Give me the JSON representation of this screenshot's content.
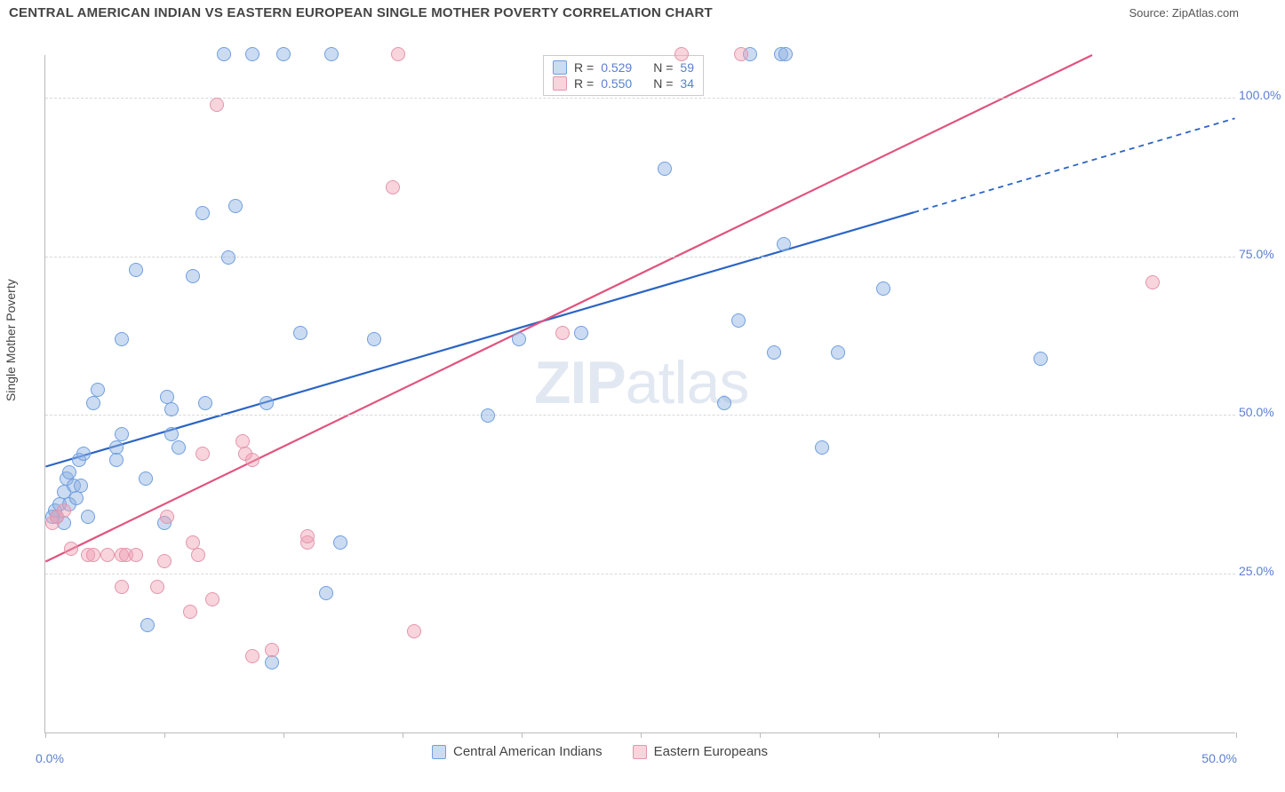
{
  "title": "CENTRAL AMERICAN INDIAN VS EASTERN EUROPEAN SINGLE MOTHER POVERTY CORRELATION CHART",
  "source": "Source: ZipAtlas.com",
  "y_axis_title": "Single Mother Poverty",
  "watermark": {
    "bold": "ZIP",
    "thin": "atlas"
  },
  "chart": {
    "type": "scatter",
    "xlim": [
      0,
      50
    ],
    "ylim": [
      0,
      107
    ],
    "x_ticks": [
      0,
      5,
      10,
      15,
      20,
      25,
      30,
      35,
      40,
      45,
      50
    ],
    "x_labels": {
      "0": "0.0%",
      "50": "50.0%"
    },
    "y_gridlines": [
      25,
      50,
      75,
      100
    ],
    "y_labels": [
      "25.0%",
      "50.0%",
      "75.0%",
      "100.0%"
    ],
    "background_color": "#ffffff",
    "grid_color": "#d8d8d8",
    "axis_color": "#bbbbbb",
    "label_color": "#5b7fd0",
    "marker_radius": 8,
    "series": [
      {
        "name": "Central American Indians",
        "fill": "rgba(140,175,225,0.45)",
        "stroke": "#6f9fe0",
        "trend_color": "#2b64c4",
        "trend": {
          "x1": 0,
          "y1": 42,
          "x2": 50,
          "y2": 97,
          "solid_until_x": 36.5
        },
        "R": "0.529",
        "N": "59",
        "points": [
          [
            0.3,
            34
          ],
          [
            0.4,
            35
          ],
          [
            0.6,
            36
          ],
          [
            0.8,
            33
          ],
          [
            0.8,
            38
          ],
          [
            0.9,
            40
          ],
          [
            1.0,
            36
          ],
          [
            1.0,
            41
          ],
          [
            1.2,
            39
          ],
          [
            1.3,
            37
          ],
          [
            1.5,
            39
          ],
          [
            2.0,
            52
          ],
          [
            1.4,
            43
          ],
          [
            1.6,
            44
          ],
          [
            0.5,
            34
          ],
          [
            2.2,
            54
          ],
          [
            3.0,
            45
          ],
          [
            3.0,
            43
          ],
          [
            3.2,
            47
          ],
          [
            4.2,
            40
          ],
          [
            5.3,
            51
          ],
          [
            5.3,
            47
          ],
          [
            5.6,
            45
          ],
          [
            3.2,
            62
          ],
          [
            6.7,
            52
          ],
          [
            5.1,
            53
          ],
          [
            9.3,
            52
          ],
          [
            6.2,
            72
          ],
          [
            7.7,
            75
          ],
          [
            6.6,
            82
          ],
          [
            8.0,
            83
          ],
          [
            10.7,
            63
          ],
          [
            3.8,
            73
          ],
          [
            12.0,
            107
          ],
          [
            10.0,
            107
          ],
          [
            8.7,
            107
          ],
          [
            7.5,
            107
          ],
          [
            13.8,
            62
          ],
          [
            18.6,
            50
          ],
          [
            19.9,
            62
          ],
          [
            22.5,
            63
          ],
          [
            29.6,
            107
          ],
          [
            30.9,
            107
          ],
          [
            31.1,
            107
          ],
          [
            26.0,
            89
          ],
          [
            31.0,
            77
          ],
          [
            29.1,
            65
          ],
          [
            28.5,
            52
          ],
          [
            30.6,
            60
          ],
          [
            33.3,
            60
          ],
          [
            32.6,
            45
          ],
          [
            35.2,
            70
          ],
          [
            41.8,
            59
          ],
          [
            12.4,
            30
          ],
          [
            11.8,
            22
          ],
          [
            4.3,
            17
          ],
          [
            9.5,
            11
          ],
          [
            5.0,
            33
          ],
          [
            1.8,
            34
          ]
        ]
      },
      {
        "name": "Eastern Europeans",
        "fill": "rgba(240,160,180,0.45)",
        "stroke": "#e495ab",
        "trend_color": "#e0537d",
        "trend": {
          "x1": 0,
          "y1": 27,
          "x2": 44,
          "y2": 107,
          "solid_until_x": 44
        },
        "R": "0.550",
        "N": "34",
        "points": [
          [
            0.3,
            33
          ],
          [
            0.5,
            34
          ],
          [
            0.8,
            35
          ],
          [
            1.1,
            29
          ],
          [
            1.8,
            28
          ],
          [
            2.0,
            28
          ],
          [
            2.6,
            28
          ],
          [
            3.2,
            28
          ],
          [
            3.2,
            23
          ],
          [
            3.4,
            28
          ],
          [
            3.8,
            28
          ],
          [
            5.0,
            27
          ],
          [
            4.7,
            23
          ],
          [
            5.1,
            34
          ],
          [
            6.2,
            30
          ],
          [
            6.4,
            28
          ],
          [
            6.1,
            19
          ],
          [
            6.6,
            44
          ],
          [
            7.0,
            21
          ],
          [
            8.3,
            46
          ],
          [
            8.4,
            44
          ],
          [
            8.7,
            43
          ],
          [
            11.0,
            30
          ],
          [
            11.0,
            31
          ],
          [
            8.7,
            12
          ],
          [
            9.5,
            13
          ],
          [
            15.5,
            16
          ],
          [
            14.8,
            107
          ],
          [
            21.7,
            63
          ],
          [
            7.2,
            99
          ],
          [
            14.6,
            86
          ],
          [
            29.2,
            107
          ],
          [
            26.7,
            107
          ],
          [
            46.5,
            71
          ]
        ]
      }
    ]
  },
  "legend_top_label_R": "R =",
  "legend_top_label_N": "N ="
}
